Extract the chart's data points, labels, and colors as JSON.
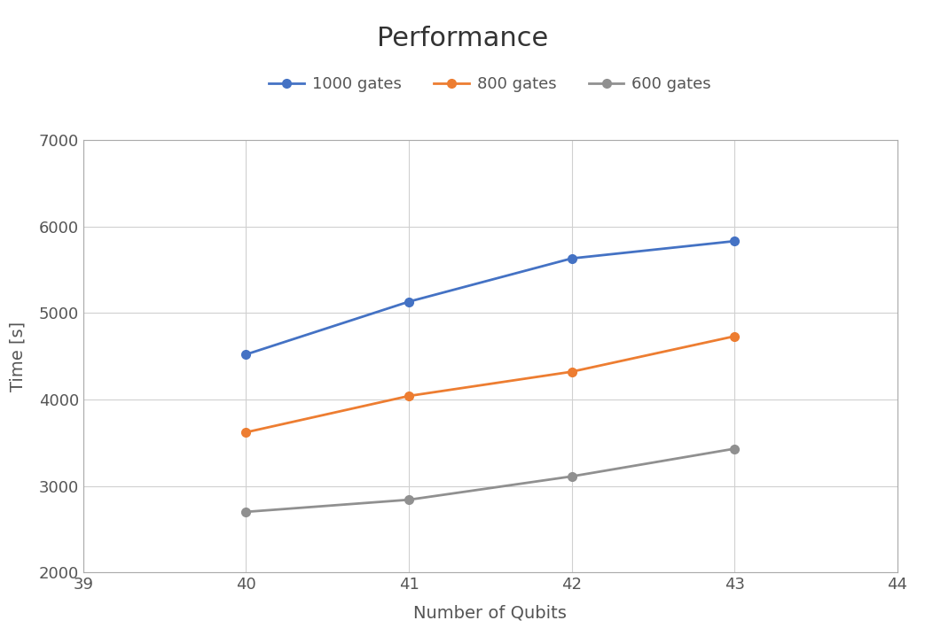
{
  "title": "Performance",
  "xlabel": "Number of Qubits",
  "ylabel": "Time [s]",
  "xlim": [
    39,
    44
  ],
  "ylim": [
    2000,
    7000
  ],
  "xticks": [
    39,
    40,
    41,
    42,
    43,
    44
  ],
  "yticks": [
    2000,
    3000,
    4000,
    5000,
    6000,
    7000
  ],
  "series": [
    {
      "label": "1000 gates",
      "x": [
        40,
        41,
        42,
        43
      ],
      "y": [
        4520,
        5130,
        5630,
        5830
      ],
      "color": "#4472C4",
      "marker": "o",
      "linewidth": 2.0,
      "markersize": 7
    },
    {
      "label": "800 gates",
      "x": [
        40,
        41,
        42,
        43
      ],
      "y": [
        3620,
        4040,
        4320,
        4730
      ],
      "color": "#ED7D31",
      "marker": "o",
      "linewidth": 2.0,
      "markersize": 7
    },
    {
      "label": "600 gates",
      "x": [
        40,
        41,
        42,
        43
      ],
      "y": [
        2700,
        2840,
        3110,
        3430
      ],
      "color": "#909090",
      "marker": "o",
      "linewidth": 2.0,
      "markersize": 7
    }
  ],
  "title_fontsize": 22,
  "axis_label_fontsize": 14,
  "tick_fontsize": 13,
  "legend_fontsize": 13,
  "background_color": "#ffffff",
  "grid_color": "#d0d0d0",
  "grid_linewidth": 0.8,
  "spine_color": "#aaaaaa"
}
